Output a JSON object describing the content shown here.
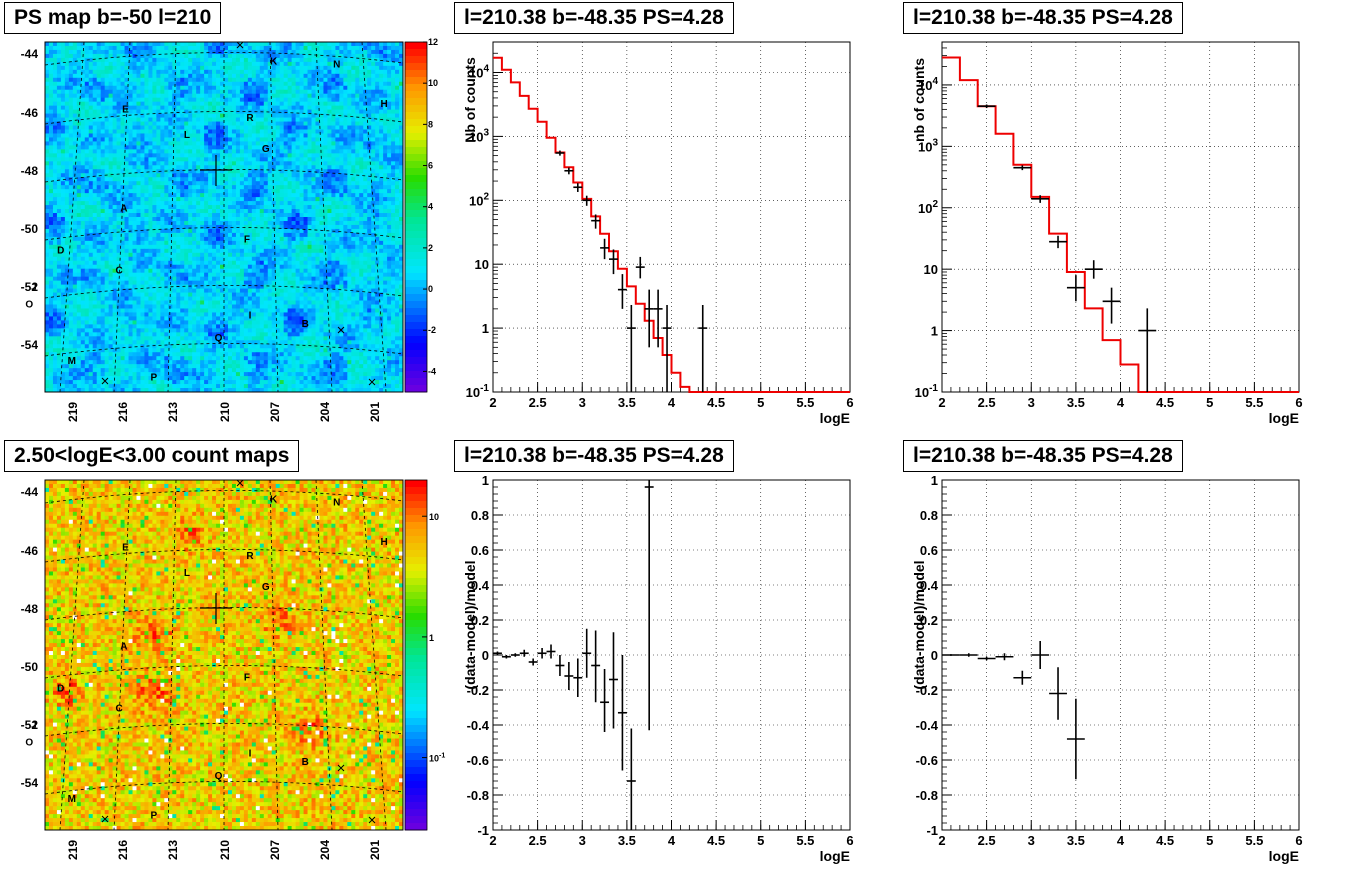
{
  "map_labels": [
    {
      "t": "K",
      "l": 207,
      "b": -44.2
    },
    {
      "t": "N",
      "l": 203,
      "b": -44.3
    },
    {
      "t": "H",
      "l": 200,
      "b": -45.7
    },
    {
      "t": "E",
      "l": 216.4,
      "b": -45.9
    },
    {
      "t": "R",
      "l": 208.5,
      "b": -46.2
    },
    {
      "t": "L",
      "l": 212.5,
      "b": -46.8
    },
    {
      "t": "G",
      "l": 207.5,
      "b": -47.3
    },
    {
      "t": "A",
      "l": 216.5,
      "b": -49.4
    },
    {
      "t": "F",
      "l": 208.7,
      "b": -50.5
    },
    {
      "t": "D",
      "l": 220.5,
      "b": -50.9
    },
    {
      "t": "C",
      "l": 216.8,
      "b": -51.6
    },
    {
      "t": "J",
      "l": 222.2,
      "b": -52.2
    },
    {
      "t": "O",
      "l": 222.5,
      "b": -52.8
    },
    {
      "t": "I",
      "l": 208.5,
      "b": -53.2
    },
    {
      "t": "B",
      "l": 205,
      "b": -53.5
    },
    {
      "t": "Q",
      "l": 210.5,
      "b": -54.0
    },
    {
      "t": "M",
      "l": 219.8,
      "b": -54.8
    },
    {
      "t": "P",
      "l": 214.6,
      "b": -55.4
    }
  ],
  "chart_data": [
    {
      "type": "heatmap",
      "title": "PS map b=-50 l=210",
      "y_ticks": [
        "-44",
        "-46",
        "-48",
        "-50",
        "-52",
        "-54"
      ],
      "x_ticks": [
        "219",
        "216",
        "213",
        "210",
        "207",
        "204",
        "201"
      ],
      "colorbar_ticks": [
        "12",
        "10",
        "8",
        "6",
        "4",
        "2",
        "0",
        "-2",
        "-4"
      ],
      "colorbar_range": [
        -5,
        12
      ],
      "center": {
        "l": 210.38,
        "b": -48.35
      }
    },
    {
      "type": "line",
      "title": "l=210.38 b=-48.35 PS=4.28",
      "xlabel": "logE",
      "ylabel": "Nb of counts",
      "log_y": true,
      "xlim": [
        2,
        6
      ],
      "ylim": [
        0.1,
        30000
      ],
      "x_ticks": [
        "2",
        "2.5",
        "3",
        "3.5",
        "4",
        "4.5",
        "5",
        "5.5",
        "6"
      ],
      "y_ticks": [
        "10^-1",
        "1",
        "10",
        "10^2",
        "10^3",
        "10^4"
      ],
      "grid": true,
      "model_color": "#ee0000",
      "model_step": [
        {
          "x0": 2.0,
          "x1": 2.1,
          "y": 17000
        },
        {
          "x0": 2.1,
          "x1": 2.2,
          "y": 11000
        },
        {
          "x0": 2.2,
          "x1": 2.3,
          "y": 7000
        },
        {
          "x0": 2.3,
          "x1": 2.4,
          "y": 4300
        },
        {
          "x0": 2.4,
          "x1": 2.5,
          "y": 2700
        },
        {
          "x0": 2.5,
          "x1": 2.6,
          "y": 1700
        },
        {
          "x0": 2.6,
          "x1": 2.7,
          "y": 950
        },
        {
          "x0": 2.7,
          "x1": 2.8,
          "y": 560
        },
        {
          "x0": 2.8,
          "x1": 2.9,
          "y": 330
        },
        {
          "x0": 2.9,
          "x1": 3.0,
          "y": 190
        },
        {
          "x0": 3.0,
          "x1": 3.1,
          "y": 105
        },
        {
          "x0": 3.1,
          "x1": 3.2,
          "y": 56
        },
        {
          "x0": 3.2,
          "x1": 3.3,
          "y": 30
        },
        {
          "x0": 3.3,
          "x1": 3.4,
          "y": 16
        },
        {
          "x0": 3.4,
          "x1": 3.5,
          "y": 8.5
        },
        {
          "x0": 3.5,
          "x1": 3.6,
          "y": 4.5
        },
        {
          "x0": 3.6,
          "x1": 3.7,
          "y": 2.4
        },
        {
          "x0": 3.7,
          "x1": 3.8,
          "y": 1.3
        },
        {
          "x0": 3.8,
          "x1": 3.9,
          "y": 0.7
        },
        {
          "x0": 3.9,
          "x1": 4.0,
          "y": 0.38
        },
        {
          "x0": 4.0,
          "x1": 4.1,
          "y": 0.2
        },
        {
          "x0": 4.1,
          "x1": 4.2,
          "y": 0.12
        },
        {
          "x0": 4.2,
          "x1": 6.0,
          "y": 0.1
        }
      ],
      "points": [
        {
          "x": 2.75,
          "y": 550,
          "ylo": 500,
          "yhi": 600
        },
        {
          "x": 2.85,
          "y": 290,
          "ylo": 255,
          "yhi": 325
        },
        {
          "x": 2.95,
          "y": 160,
          "ylo": 135,
          "yhi": 185
        },
        {
          "x": 3.05,
          "y": 100,
          "ylo": 82,
          "yhi": 118
        },
        {
          "x": 3.15,
          "y": 48,
          "ylo": 36,
          "yhi": 60
        },
        {
          "x": 3.25,
          "y": 18,
          "ylo": 12,
          "yhi": 25
        },
        {
          "x": 3.35,
          "y": 12,
          "ylo": 7,
          "yhi": 17
        },
        {
          "x": 3.45,
          "y": 4,
          "ylo": 2,
          "yhi": 7
        },
        {
          "x": 3.55,
          "y": 1,
          "ylo": 0.1,
          "yhi": 2.3
        },
        {
          "x": 3.65,
          "y": 9,
          "ylo": 6,
          "yhi": 13
        },
        {
          "x": 3.75,
          "y": 2,
          "ylo": 0.5,
          "yhi": 4
        },
        {
          "x": 3.85,
          "y": 2,
          "ylo": 0.5,
          "yhi": 4
        },
        {
          "x": 3.95,
          "y": 1,
          "ylo": 0.1,
          "yhi": 2.3
        },
        {
          "x": 4.35,
          "y": 1,
          "ylo": 0.1,
          "yhi": 2.3
        }
      ]
    },
    {
      "type": "line",
      "title": "l=210.38 b=-48.35 PS=4.28",
      "xlabel": "logE",
      "ylabel": "nb of counts",
      "log_y": true,
      "xlim": [
        2,
        6
      ],
      "ylim": [
        0.1,
        50000
      ],
      "x_ticks": [
        "2",
        "2.5",
        "3",
        "3.5",
        "4",
        "4.5",
        "5",
        "5.5",
        "6"
      ],
      "y_ticks": [
        "10^-1",
        "1",
        "10",
        "10^2",
        "10^3",
        "10^4"
      ],
      "grid": true,
      "model_color": "#ee0000",
      "model_step": [
        {
          "x0": 2.0,
          "x1": 2.2,
          "y": 28000
        },
        {
          "x0": 2.2,
          "x1": 2.4,
          "y": 12000
        },
        {
          "x0": 2.4,
          "x1": 2.6,
          "y": 4500
        },
        {
          "x0": 2.6,
          "x1": 2.8,
          "y": 1600
        },
        {
          "x0": 2.8,
          "x1": 3.0,
          "y": 500
        },
        {
          "x0": 3.0,
          "x1": 3.2,
          "y": 150
        },
        {
          "x0": 3.2,
          "x1": 3.4,
          "y": 38
        },
        {
          "x0": 3.4,
          "x1": 3.6,
          "y": 9
        },
        {
          "x0": 3.6,
          "x1": 3.8,
          "y": 2.3
        },
        {
          "x0": 3.8,
          "x1": 4.0,
          "y": 0.7
        },
        {
          "x0": 4.0,
          "x1": 4.2,
          "y": 0.28
        },
        {
          "x0": 4.2,
          "x1": 6.0,
          "y": 0.1
        }
      ],
      "points": [
        {
          "x": 2.5,
          "y": 4500,
          "ylo": 4200,
          "yhi": 4800
        },
        {
          "x": 2.9,
          "y": 450,
          "ylo": 410,
          "yhi": 490
        },
        {
          "x": 3.1,
          "y": 140,
          "ylo": 120,
          "yhi": 160
        },
        {
          "x": 3.3,
          "y": 28,
          "ylo": 22,
          "yhi": 35
        },
        {
          "x": 3.5,
          "y": 5,
          "ylo": 3,
          "yhi": 8
        },
        {
          "x": 3.7,
          "y": 10,
          "ylo": 7,
          "yhi": 14
        },
        {
          "x": 3.9,
          "y": 3,
          "ylo": 1.3,
          "yhi": 5
        },
        {
          "x": 4.3,
          "y": 1,
          "ylo": 0.1,
          "yhi": 2.3
        }
      ]
    },
    {
      "type": "heatmap",
      "title": "2.50<logE<3.00 count maps",
      "y_ticks": [
        "-44",
        "-46",
        "-48",
        "-50",
        "-52",
        "-54"
      ],
      "x_ticks": [
        "219",
        "216",
        "213",
        "210",
        "207",
        "204",
        "201"
      ],
      "colorbar_ticks": [
        "10",
        "1",
        "10^-1"
      ],
      "colorbar_range_log": [
        -1.6,
        1.3
      ]
    },
    {
      "type": "scatter",
      "title": "l=210.38 b=-48.35 PS=4.28",
      "xlabel": "logE",
      "ylabel": "(data-model)/model",
      "xlim": [
        2,
        6
      ],
      "ylim": [
        -1,
        1
      ],
      "x_ticks": [
        "2",
        "2.5",
        "3",
        "3.5",
        "4",
        "4.5",
        "5",
        "5.5",
        "6"
      ],
      "y_ticks": [
        "-1",
        "-0.8",
        "-0.6",
        "-0.4",
        "-0.2",
        "0",
        "0.2",
        "0.4",
        "0.6",
        "0.8",
        "1"
      ],
      "grid": true,
      "points": [
        {
          "x": 2.05,
          "y": 0.01,
          "ylo": 0.0,
          "yhi": 0.02
        },
        {
          "x": 2.15,
          "y": -0.01,
          "ylo": -0.02,
          "yhi": 0.0
        },
        {
          "x": 2.25,
          "y": 0.0,
          "ylo": -0.01,
          "yhi": 0.01
        },
        {
          "x": 2.35,
          "y": 0.01,
          "ylo": -0.01,
          "yhi": 0.03
        },
        {
          "x": 2.45,
          "y": -0.04,
          "ylo": -0.06,
          "yhi": -0.02
        },
        {
          "x": 2.55,
          "y": 0.01,
          "ylo": -0.02,
          "yhi": 0.04
        },
        {
          "x": 2.65,
          "y": 0.02,
          "ylo": -0.02,
          "yhi": 0.06
        },
        {
          "x": 2.75,
          "y": -0.06,
          "ylo": -0.12,
          "yhi": 0.0
        },
        {
          "x": 2.85,
          "y": -0.12,
          "ylo": -0.2,
          "yhi": -0.04
        },
        {
          "x": 2.95,
          "y": -0.13,
          "ylo": -0.24,
          "yhi": -0.02
        },
        {
          "x": 3.05,
          "y": 0.01,
          "ylo": -0.13,
          "yhi": 0.15
        },
        {
          "x": 3.15,
          "y": -0.06,
          "ylo": -0.27,
          "yhi": 0.14
        },
        {
          "x": 3.25,
          "y": -0.27,
          "ylo": -0.44,
          "yhi": -0.08
        },
        {
          "x": 3.35,
          "y": -0.14,
          "ylo": -0.42,
          "yhi": 0.13
        },
        {
          "x": 3.45,
          "y": -0.33,
          "ylo": -0.66,
          "yhi": 0.0
        },
        {
          "x": 3.55,
          "y": -0.72,
          "ylo": -1.0,
          "yhi": -0.42
        },
        {
          "x": 3.75,
          "y": 0.96,
          "ylo": -0.43,
          "yhi": 1.0
        }
      ]
    },
    {
      "type": "scatter",
      "title": "l=210.38 b=-48.35 PS=4.28",
      "xlabel": "logE",
      "ylabel": "(data-model)/model",
      "xlim": [
        2,
        6
      ],
      "ylim": [
        -1,
        1
      ],
      "x_ticks": [
        "2",
        "2.5",
        "3",
        "3.5",
        "4",
        "4.5",
        "5",
        "5.5",
        "6"
      ],
      "y_ticks": [
        "-1",
        "-0.8",
        "-0.6",
        "-0.4",
        "-0.2",
        "0",
        "0.2",
        "0.4",
        "0.6",
        "0.8",
        "1"
      ],
      "grid": true,
      "points": [
        {
          "x": 2.1,
          "y": 0.0,
          "ylo": -0.005,
          "yhi": 0.005
        },
        {
          "x": 2.3,
          "y": 0.0,
          "ylo": -0.01,
          "yhi": 0.01
        },
        {
          "x": 2.5,
          "y": -0.02,
          "ylo": -0.03,
          "yhi": -0.01
        },
        {
          "x": 2.7,
          "y": -0.01,
          "ylo": -0.03,
          "yhi": 0.01
        },
        {
          "x": 2.9,
          "y": -0.13,
          "ylo": -0.17,
          "yhi": -0.09
        },
        {
          "x": 3.1,
          "y": 0.0,
          "ylo": -0.08,
          "yhi": 0.08
        },
        {
          "x": 3.3,
          "y": -0.22,
          "ylo": -0.37,
          "yhi": -0.07
        },
        {
          "x": 3.5,
          "y": -0.48,
          "ylo": -0.71,
          "yhi": -0.25
        }
      ]
    }
  ]
}
